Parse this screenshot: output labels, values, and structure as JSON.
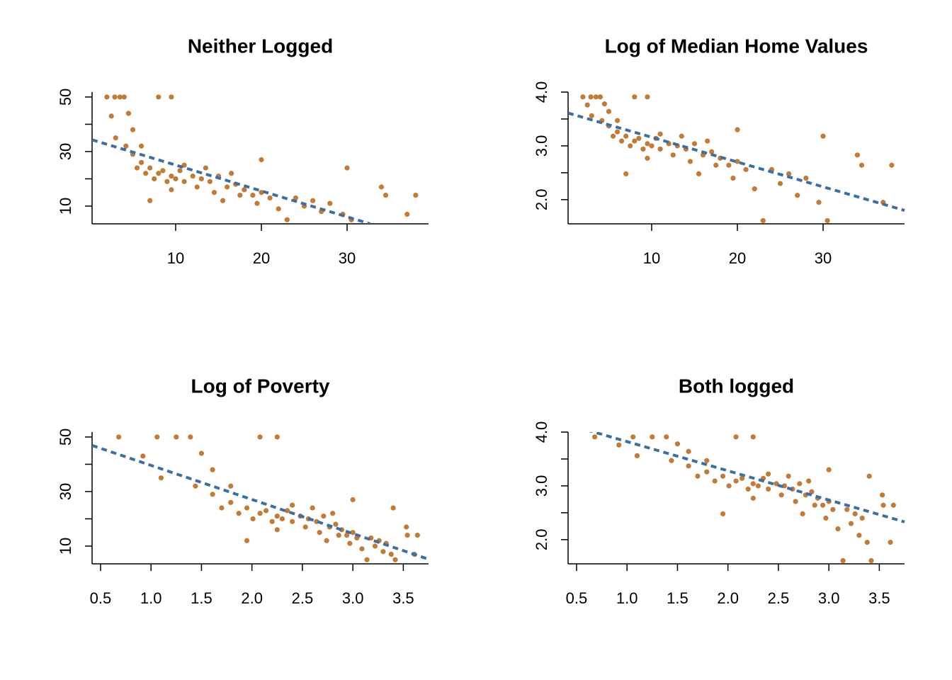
{
  "chart_data": [
    {
      "type": "scatter",
      "title": "Neither Logged",
      "color": "#c27a35",
      "x": [
        1.98,
        2.9,
        3.5,
        4.0,
        8.0,
        9.5,
        3.0,
        4.5,
        4.2,
        5.0,
        5.5,
        6.0,
        6.5,
        7.0,
        7.5,
        8.0,
        8.5,
        9.0,
        9.5,
        10.0,
        10.5,
        11.0,
        12.0,
        12.5,
        13.0,
        14.0,
        14.5,
        15.0,
        16.0,
        17.0,
        17.5,
        18.0,
        19.0,
        19.5,
        20.0,
        21.0,
        22.0,
        23.0,
        24.0,
        25.0,
        26.0,
        27.0,
        28.0,
        29.5,
        30.5,
        30.0,
        34.0,
        34.5,
        37.0,
        38.0,
        6.0,
        11.0,
        13.5,
        16.5,
        20.0,
        7.0,
        2.5,
        5.0,
        9.5,
        15.5
      ],
      "y": [
        50,
        50,
        50,
        50,
        50,
        50,
        35,
        44,
        32,
        29,
        24,
        26,
        22,
        24,
        20,
        22,
        23,
        19,
        21,
        20,
        23,
        19,
        21,
        17,
        20,
        19,
        15,
        21,
        17,
        18,
        14,
        16,
        14,
        11,
        15,
        13,
        9,
        5,
        13,
        10,
        12,
        8,
        11,
        7,
        5,
        24,
        17,
        14,
        7,
        14,
        32,
        25,
        24,
        22,
        27,
        12,
        43,
        38,
        16,
        12
      ],
      "fit": {
        "x": [
          0.25,
          32.7
        ],
        "y": [
          34.3,
          3.5
        ],
        "color": "#3a6ea5"
      },
      "xlim": [
        0.25,
        39.5
      ],
      "ylim": [
        3.5,
        51.8
      ],
      "xticks": [
        10,
        20,
        30
      ],
      "yticks": [
        10,
        30,
        50
      ],
      "y_minor_ticks": [
        20,
        40
      ]
    },
    {
      "type": "scatter",
      "title": "Log of Median Home Values",
      "color": "#c27a35",
      "x": [
        1.98,
        2.9,
        3.5,
        4.0,
        8.0,
        9.5,
        3.0,
        4.5,
        4.2,
        5.0,
        5.5,
        6.0,
        6.5,
        7.0,
        7.5,
        8.0,
        8.5,
        9.0,
        9.5,
        10.0,
        10.5,
        11.0,
        12.0,
        12.5,
        13.0,
        14.0,
        14.5,
        15.0,
        16.0,
        17.0,
        17.5,
        18.0,
        19.0,
        19.5,
        20.0,
        21.0,
        22.0,
        23.0,
        24.0,
        25.0,
        26.0,
        27.0,
        28.0,
        29.5,
        30.5,
        30.0,
        34.0,
        34.5,
        37.0,
        38.0,
        6.0,
        11.0,
        13.5,
        16.5,
        20.0,
        7.0,
        2.5,
        5.0,
        9.5,
        15.5
      ],
      "y": [
        3.91,
        3.91,
        3.91,
        3.91,
        3.91,
        3.91,
        3.56,
        3.78,
        3.47,
        3.37,
        3.18,
        3.26,
        3.09,
        3.18,
        3.0,
        3.09,
        3.14,
        2.94,
        3.04,
        3.0,
        3.14,
        2.94,
        3.04,
        2.83,
        3.0,
        2.94,
        2.71,
        3.04,
        2.83,
        2.89,
        2.64,
        2.77,
        2.64,
        2.4,
        2.71,
        2.56,
        2.2,
        1.61,
        2.56,
        2.3,
        2.48,
        2.08,
        2.4,
        1.95,
        1.61,
        3.18,
        2.83,
        2.64,
        1.95,
        2.64,
        3.47,
        3.22,
        3.18,
        3.09,
        3.3,
        2.48,
        3.76,
        3.64,
        2.77,
        2.48
      ],
      "fit": {
        "x": [
          0.25,
          39.5
        ],
        "y": [
          3.61,
          1.8
        ],
        "color": "#3a6ea5"
      },
      "xlim": [
        0.25,
        39.5
      ],
      "ylim": [
        1.55,
        4.0
      ],
      "xticks": [
        10,
        20,
        30
      ],
      "yticks": [
        {
          "value": 2,
          "label": "2.0"
        },
        {
          "value": 3,
          "label": "3.0"
        },
        {
          "value": 4,
          "label": "4.0"
        }
      ],
      "y_minor_ticks": [
        2.5,
        3.5
      ]
    },
    {
      "type": "scatter",
      "title": "Log of Poverty",
      "color": "#c27a35",
      "x": [
        0.68,
        1.06,
        1.25,
        1.39,
        2.08,
        2.25,
        1.1,
        1.5,
        1.44,
        1.61,
        1.7,
        1.79,
        1.87,
        1.95,
        2.01,
        2.08,
        2.14,
        2.2,
        2.25,
        2.3,
        2.35,
        2.4,
        2.48,
        2.53,
        2.56,
        2.64,
        2.67,
        2.71,
        2.77,
        2.83,
        2.86,
        2.89,
        2.94,
        2.97,
        3.0,
        3.04,
        3.09,
        3.14,
        3.18,
        3.22,
        3.26,
        3.3,
        3.33,
        3.38,
        3.42,
        3.4,
        3.53,
        3.54,
        3.61,
        3.64,
        1.79,
        2.4,
        2.6,
        2.8,
        3.0,
        1.95,
        0.92,
        1.61,
        2.25,
        2.74
      ],
      "y": [
        50,
        50,
        50,
        50,
        50,
        50,
        35,
        44,
        32,
        29,
        24,
        26,
        22,
        24,
        20,
        22,
        23,
        19,
        21,
        20,
        23,
        19,
        21,
        17,
        20,
        19,
        15,
        21,
        17,
        18,
        14,
        16,
        14,
        11,
        15,
        13,
        9,
        5,
        13,
        10,
        12,
        8,
        11,
        7,
        5,
        24,
        17,
        14,
        7,
        14,
        32,
        25,
        24,
        22,
        27,
        12,
        43,
        38,
        16,
        12
      ],
      "fit": {
        "x": [
          0.416,
          3.75
        ],
        "y": [
          46.9,
          5.2
        ],
        "color": "#3a6ea5"
      },
      "xlim": [
        0.416,
        3.75
      ],
      "ylim": [
        3.5,
        51.8
      ],
      "xticks": [
        0.5,
        {
          "value": 1,
          "label": "1.0"
        },
        1.5,
        {
          "value": 2,
          "label": "2.0"
        },
        2.5,
        {
          "value": 3,
          "label": "3.0"
        },
        3.5
      ],
      "yticks": [
        10,
        30,
        50
      ],
      "y_minor_ticks": [
        20,
        40
      ]
    },
    {
      "type": "scatter",
      "title": "Both logged",
      "color": "#c27a35",
      "x": [
        0.68,
        1.06,
        1.25,
        1.39,
        2.08,
        2.25,
        1.1,
        1.5,
        1.44,
        1.61,
        1.7,
        1.79,
        1.87,
        1.95,
        2.01,
        2.08,
        2.14,
        2.2,
        2.25,
        2.3,
        2.35,
        2.4,
        2.48,
        2.53,
        2.56,
        2.64,
        2.67,
        2.71,
        2.77,
        2.83,
        2.86,
        2.89,
        2.94,
        2.97,
        3.0,
        3.04,
        3.09,
        3.14,
        3.18,
        3.22,
        3.26,
        3.3,
        3.33,
        3.38,
        3.42,
        3.4,
        3.53,
        3.54,
        3.61,
        3.64,
        1.79,
        2.4,
        2.6,
        2.8,
        3.0,
        1.95,
        0.92,
        1.61,
        2.25,
        2.74
      ],
      "y": [
        3.91,
        3.91,
        3.91,
        3.91,
        3.91,
        3.91,
        3.56,
        3.78,
        3.47,
        3.37,
        3.18,
        3.26,
        3.09,
        3.18,
        3.0,
        3.09,
        3.14,
        2.94,
        3.04,
        3.0,
        3.14,
        2.94,
        3.04,
        2.83,
        3.0,
        2.94,
        2.71,
        3.04,
        2.83,
        2.89,
        2.64,
        2.77,
        2.64,
        2.4,
        2.71,
        2.56,
        2.2,
        1.61,
        2.56,
        2.3,
        2.48,
        2.08,
        2.4,
        1.95,
        1.61,
        3.18,
        2.83,
        2.64,
        1.95,
        2.64,
        3.47,
        3.22,
        3.18,
        3.09,
        3.3,
        2.48,
        3.76,
        3.64,
        2.77,
        2.48
      ],
      "fit": {
        "x": [
          0.416,
          3.75
        ],
        "y": [
          4.14,
          2.33
        ],
        "color": "#3a6ea5"
      },
      "xlim": [
        0.416,
        3.75
      ],
      "ylim": [
        1.55,
        4.0
      ],
      "xticks": [
        0.5,
        {
          "value": 1,
          "label": "1.0"
        },
        1.5,
        {
          "value": 2,
          "label": "2.0"
        },
        2.5,
        {
          "value": 3,
          "label": "3.0"
        },
        3.5
      ],
      "yticks": [
        {
          "value": 2,
          "label": "2.0"
        },
        {
          "value": 3,
          "label": "3.0"
        },
        {
          "value": 4,
          "label": "4.0"
        }
      ],
      "y_minor_ticks": [
        2.5,
        3.5
      ]
    }
  ]
}
